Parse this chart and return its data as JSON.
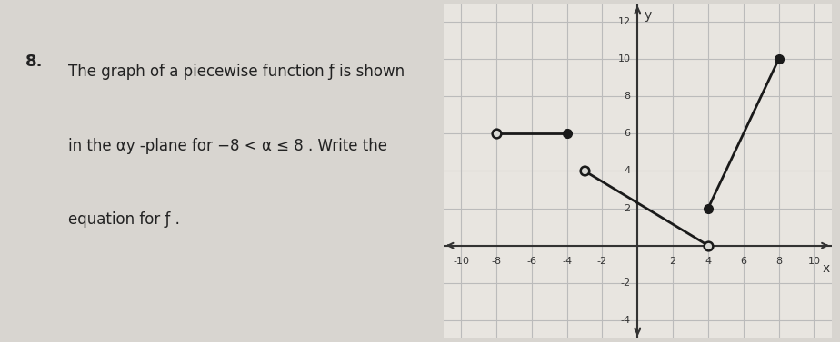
{
  "problem_number": "8.",
  "text_lines": [
    "The graph of a piecewise function ƒ is shown",
    "in the αy -plane for −8 < α ≤ 8 . Write the",
    "equation for ƒ ."
  ],
  "xlabel": "x",
  "ylabel": "y",
  "xlim": [
    -11,
    11
  ],
  "ylim": [
    -5,
    13
  ],
  "xticks": [
    -10,
    -8,
    -6,
    -4,
    -2,
    0,
    2,
    4,
    6,
    8,
    10
  ],
  "yticks": [
    -4,
    -2,
    0,
    2,
    4,
    6,
    8,
    10,
    12
  ],
  "grid_color": "#bbbbbb",
  "background_color": "#d8d5d0",
  "plot_bg_color": "#e8e5e0",
  "segments": [
    {
      "x": [
        -8,
        -4
      ],
      "y": [
        6,
        6
      ],
      "open_start": true,
      "open_end": false,
      "color": "#1a1a1a",
      "linewidth": 2
    },
    {
      "x": [
        -3,
        4
      ],
      "y": [
        4,
        0
      ],
      "open_start": true,
      "open_end": true,
      "color": "#1a1a1a",
      "linewidth": 2
    },
    {
      "x": [
        4,
        8
      ],
      "y": [
        2,
        10
      ],
      "open_start": false,
      "open_end": false,
      "color": "#1a1a1a",
      "linewidth": 2
    }
  ],
  "dot_filled_color": "#1a1a1a",
  "dot_open_facecolor": "#d8d8d4",
  "dot_size": 7,
  "axis_color": "#333333",
  "tick_fontsize": 8,
  "label_fontsize": 10,
  "text_fontsize": 13,
  "text_color": "#222222"
}
